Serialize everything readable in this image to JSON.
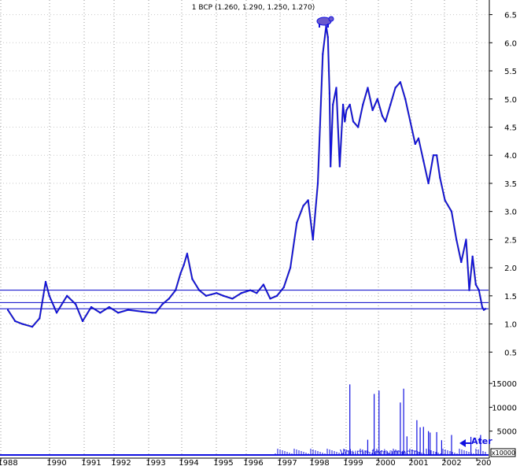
{
  "chart_data": [
    {
      "type": "line",
      "title": "1 BCP (1.260, 1.290, 1.250, 1.270)",
      "x_ticks": [
        "1988",
        "1990",
        "1991",
        "1992",
        "1993",
        "1994",
        "1995",
        "1996",
        "1997",
        "1998",
        "1999",
        "2000",
        "2001",
        "2002",
        "200"
      ],
      "y_ticks": [
        "6.5",
        "6.0",
        "5.5",
        "5.0",
        "4.5",
        "4.0",
        "3.5",
        "3.0",
        "2.5",
        "2.0",
        "1.5",
        "1.0",
        "0.5"
      ],
      "ylim": [
        0.35,
        6.55
      ],
      "grid": true,
      "colors": {
        "price": "#1010e0",
        "dark": "#000033",
        "hline": "#0000c8"
      },
      "horizontal_lines": [
        1.27,
        1.38,
        1.6
      ],
      "series": [
        {
          "x": [
            1988.0,
            1988.3,
            1988.6,
            1989.0,
            1989.3,
            1989.55,
            1989.7,
            1989.9,
            1990.0,
            1990.3,
            1990.55,
            1990.75,
            1991.0,
            1991.3,
            1991.6,
            1991.9,
            1992.2,
            1992.6,
            1992.9,
            1993.0,
            1993.2,
            1993.4,
            1993.6,
            1993.75,
            1993.85,
            1993.95,
            1994.1,
            1994.3,
            1994.5,
            1994.8,
            1995.0,
            1995.3,
            1995.6,
            1995.9,
            1996.1,
            1996.3,
            1996.5,
            1996.7,
            1996.9,
            1997.1,
            1997.3,
            1997.5,
            1997.65,
            1997.8,
            1997.95,
            1998.1,
            1998.2,
            1998.25,
            1998.3,
            1998.33,
            1998.4,
            1998.5,
            1998.6,
            1998.7,
            1998.75,
            1998.8,
            1998.9,
            1999.0,
            1999.15,
            1999.3,
            1999.45,
            1999.6,
            1999.75,
            1999.9,
            2000.0,
            2000.15,
            2000.3,
            2000.45,
            2000.6,
            2000.75,
            2000.9,
            2001.0,
            2001.15,
            2001.3,
            2001.45,
            2001.55,
            2001.65,
            2001.8,
            2002.0,
            2002.15,
            2002.3,
            2002.45,
            2002.55,
            2002.65,
            2002.75,
            2002.85,
            2002.95,
            2003.0,
            2003.05
          ],
          "values": [
            1.25,
            1.05,
            1.0,
            0.95,
            1.1,
            1.75,
            1.5,
            1.3,
            1.2,
            1.5,
            1.35,
            1.05,
            1.3,
            1.2,
            1.3,
            1.2,
            1.25,
            1.22,
            1.2,
            1.2,
            1.35,
            1.45,
            1.6,
            1.9,
            2.05,
            2.25,
            1.8,
            1.6,
            1.5,
            1.55,
            1.5,
            1.45,
            1.55,
            1.6,
            1.55,
            1.7,
            1.45,
            1.5,
            1.65,
            2.0,
            2.8,
            3.1,
            3.2,
            2.5,
            3.5,
            5.8,
            6.3,
            6.1,
            5.1,
            3.8,
            4.9,
            5.2,
            3.8,
            4.9,
            4.6,
            4.8,
            4.9,
            4.6,
            4.5,
            4.9,
            5.2,
            4.8,
            5.0,
            4.7,
            4.6,
            4.9,
            5.2,
            5.3,
            5.0,
            4.6,
            4.2,
            4.3,
            3.9,
            3.5,
            4.0,
            4.0,
            3.6,
            3.2,
            3.0,
            2.5,
            2.1,
            2.5,
            1.6,
            2.2,
            1.7,
            1.6,
            1.3,
            1.25,
            1.27
          ]
        }
      ]
    },
    {
      "type": "bar",
      "ylabel_box": "x10000",
      "y_ticks": [
        "15000",
        "10000",
        "5000"
      ],
      "ylim": [
        0,
        16500
      ],
      "legend_text": "Volume fechamento",
      "arrow_text": "Ater",
      "colors": {
        "bar": "#1010e0"
      },
      "spikes": [
        {
          "x": 1998.9,
          "value": 14800
        },
        {
          "x": 1999.45,
          "value": 3200
        },
        {
          "x": 1999.65,
          "value": 12800
        },
        {
          "x": 1999.8,
          "value": 13500
        },
        {
          "x": 2000.45,
          "value": 11000
        },
        {
          "x": 2000.55,
          "value": 13900
        },
        {
          "x": 2000.65,
          "value": 3900
        },
        {
          "x": 2000.95,
          "value": 7300
        },
        {
          "x": 2001.05,
          "value": 5800
        },
        {
          "x": 2001.15,
          "value": 5900
        },
        {
          "x": 2001.3,
          "value": 5000
        },
        {
          "x": 2001.35,
          "value": 4700
        },
        {
          "x": 2001.55,
          "value": 4800
        },
        {
          "x": 2001.7,
          "value": 3100
        },
        {
          "x": 2002.0,
          "value": 4200
        },
        {
          "x": 2002.6,
          "value": 3800
        },
        {
          "x": 2002.9,
          "value": 4200
        }
      ]
    }
  ]
}
